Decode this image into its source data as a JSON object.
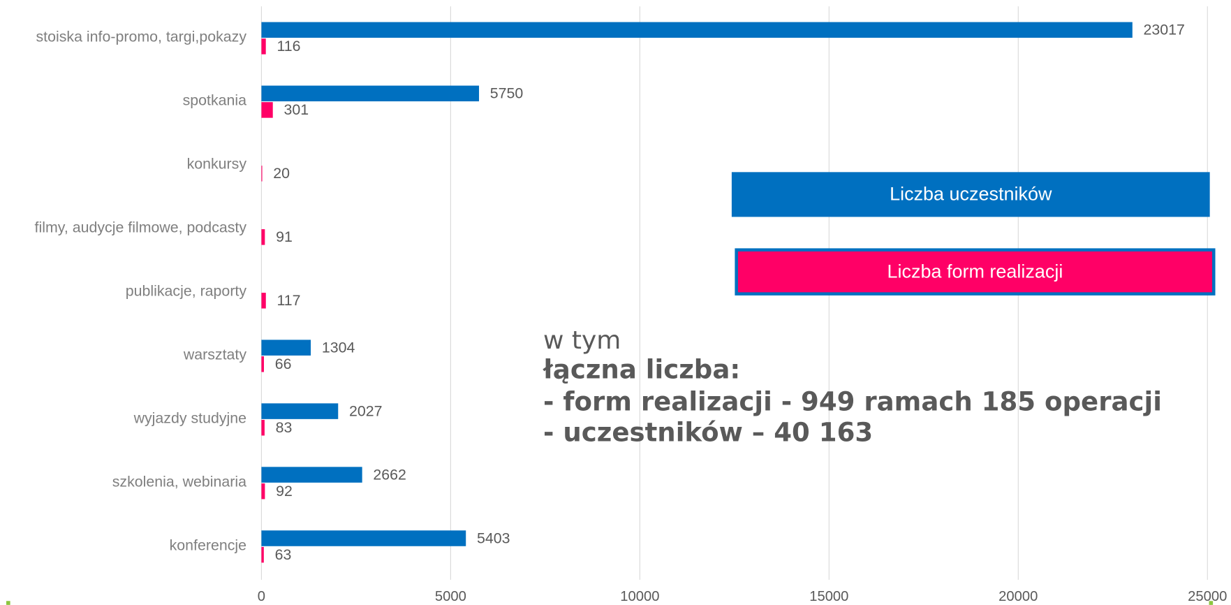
{
  "chart_data": {
    "type": "hbar",
    "categories": [
      "stoiska info-promo, targi,pokazy",
      "spotkania",
      "konkursy",
      "filmy, audycje filmowe, podcasty",
      "publikacje, raporty",
      "warsztaty",
      "wyjazdy studyjne",
      "szkolenia, webinaria",
      "konferencje"
    ],
    "series": [
      {
        "name": "Liczba uczestników",
        "color": "#0070c0",
        "values": [
          23017,
          5750,
          null,
          null,
          null,
          1304,
          2027,
          2662,
          5403
        ]
      },
      {
        "name": "Liczba form realizacji",
        "color": "#ff0066",
        "values": [
          116,
          301,
          20,
          91,
          117,
          66,
          83,
          92,
          63
        ]
      }
    ],
    "xlim": [
      0,
      25000
    ],
    "xticks": [
      0,
      5000,
      10000,
      15000,
      20000,
      25000
    ],
    "grid": true,
    "annotation": [
      "w tym",
      "łączna liczba:",
      "- form realizacji -  949 ramach 185 operacji",
      "- uczestników – 40 163"
    ]
  }
}
